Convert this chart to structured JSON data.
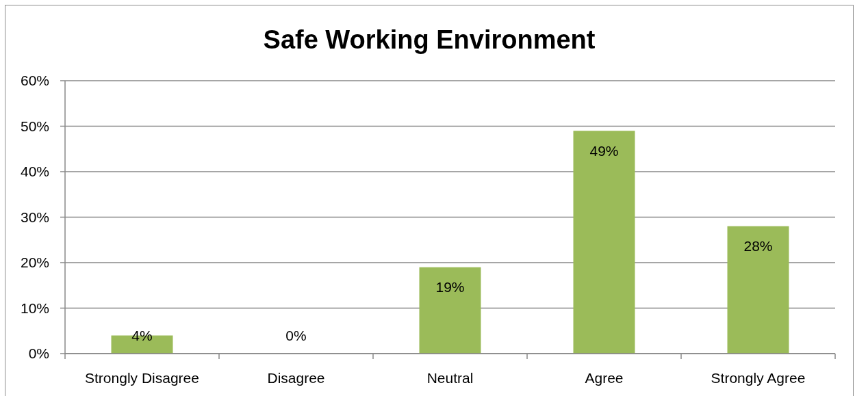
{
  "chart_data": {
    "type": "bar",
    "title": "Safe Working Environment",
    "categories": [
      "Strongly Disagree",
      "Disagree",
      "Neutral",
      "Agree",
      "Strongly Agree"
    ],
    "values": [
      4,
      0,
      19,
      49,
      28
    ],
    "color": "#9bbb59",
    "value_labels": [
      "4%",
      "0%",
      "19%",
      "49%",
      "28%"
    ],
    "ylim": [
      0,
      60
    ],
    "yticks": [
      {
        "value": 0,
        "label": "0%"
      },
      {
        "value": 10,
        "label": "10%"
      },
      {
        "value": 20,
        "label": "20%"
      },
      {
        "value": 30,
        "label": "30%"
      },
      {
        "value": 40,
        "label": "40%"
      },
      {
        "value": 50,
        "label": "50%"
      },
      {
        "value": 60,
        "label": "60%"
      }
    ],
    "grid": "y"
  }
}
